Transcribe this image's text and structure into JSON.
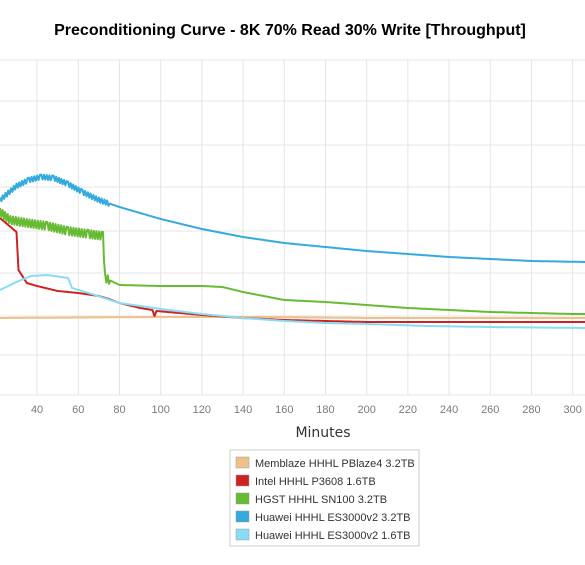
{
  "chart_data": {
    "type": "line",
    "title": "Preconditioning Curve - 8K 70% Read 30% Write [Throughput]",
    "xlabel": "Minutes",
    "ylabel": "",
    "x_ticks": [
      40,
      60,
      80,
      100,
      120,
      140,
      160,
      180,
      200,
      220,
      240,
      260,
      280,
      300
    ],
    "xlim": [
      22,
      306
    ],
    "grid": true,
    "legend_position": "bottom-center",
    "series": [
      {
        "name": "Memblaze HHHL PBlaze4 3.2TB",
        "color": "#f0c088",
        "points": [
          [
            22,
            318
          ],
          [
            100,
            317
          ],
          [
            150,
            317
          ],
          [
            200,
            318
          ],
          [
            250,
            318
          ],
          [
            306,
            318
          ]
        ]
      },
      {
        "name": "Intel HHHL P3608 1.6TB",
        "color": "#cc2222",
        "points": [
          [
            22,
            218
          ],
          [
            30,
            232
          ],
          [
            31,
            270
          ],
          [
            35,
            283
          ],
          [
            40,
            286
          ],
          [
            50,
            291
          ],
          [
            60,
            293
          ],
          [
            70,
            296
          ],
          [
            75,
            299
          ],
          [
            80,
            303
          ],
          [
            90,
            308
          ],
          [
            96,
            310
          ],
          [
            97,
            316
          ],
          [
            98,
            311
          ],
          [
            120,
            315
          ],
          [
            140,
            318
          ],
          [
            160,
            320
          ],
          [
            180,
            321
          ],
          [
            200,
            322
          ],
          [
            220,
            322
          ],
          [
            250,
            322
          ],
          [
            280,
            322
          ],
          [
            306,
            322
          ]
        ]
      },
      {
        "name": "HGST HHHL SN100 3.2TB",
        "color": "#66bb33",
        "points": [
          [
            22,
            212
          ],
          [
            27,
            220
          ],
          [
            35,
            223
          ],
          [
            45,
            226
          ],
          [
            55,
            231
          ],
          [
            65,
            234
          ],
          [
            72,
            236
          ],
          [
            73,
            278
          ],
          [
            80,
            285
          ],
          [
            100,
            286
          ],
          [
            120,
            286
          ],
          [
            130,
            287
          ],
          [
            140,
            292
          ],
          [
            150,
            296
          ],
          [
            160,
            300
          ],
          [
            180,
            302
          ],
          [
            200,
            305
          ],
          [
            220,
            308
          ],
          [
            240,
            310
          ],
          [
            260,
            312
          ],
          [
            280,
            313
          ],
          [
            300,
            314
          ],
          [
            306,
            314
          ]
        ]
      },
      {
        "name": "Huawei HHHL ES3000v2 3.2TB",
        "color": "#33aadd",
        "points": [
          [
            22,
            200
          ],
          [
            30,
            186
          ],
          [
            36,
            180
          ],
          [
            42,
            177
          ],
          [
            48,
            178
          ],
          [
            55,
            184
          ],
          [
            62,
            192
          ],
          [
            70,
            200
          ],
          [
            80,
            207
          ],
          [
            100,
            219
          ],
          [
            120,
            229
          ],
          [
            140,
            237
          ],
          [
            160,
            243
          ],
          [
            180,
            247
          ],
          [
            200,
            251
          ],
          [
            220,
            254
          ],
          [
            240,
            257
          ],
          [
            260,
            259
          ],
          [
            280,
            261
          ],
          [
            306,
            262
          ]
        ]
      },
      {
        "name": "Huawei HHHL ES3000v2 1.6TB",
        "color": "#88ddf5",
        "points": [
          [
            22,
            290
          ],
          [
            30,
            282
          ],
          [
            37,
            276
          ],
          [
            45,
            275
          ],
          [
            55,
            278
          ],
          [
            57,
            288
          ],
          [
            65,
            293
          ],
          [
            80,
            303
          ],
          [
            100,
            309
          ],
          [
            120,
            314
          ],
          [
            140,
            318
          ],
          [
            160,
            321
          ],
          [
            180,
            323
          ],
          [
            200,
            324
          ],
          [
            230,
            326
          ],
          [
            260,
            327
          ],
          [
            306,
            328
          ]
        ]
      }
    ]
  }
}
